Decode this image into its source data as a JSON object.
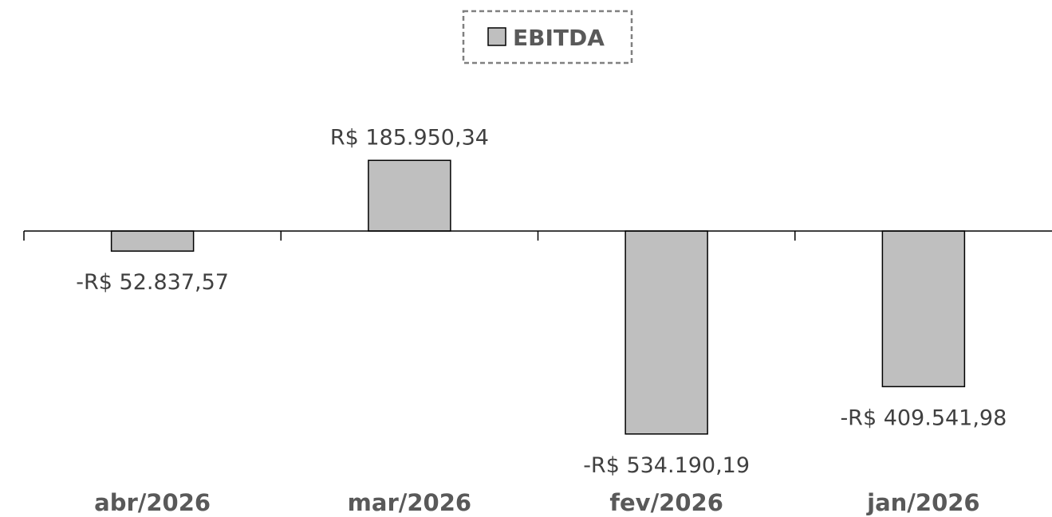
{
  "chart_data": {
    "type": "bar",
    "categories": [
      "abr/2026",
      "mar/2026",
      "fev/2026",
      "jan/2026"
    ],
    "series": [
      {
        "name": "EBITDA",
        "values": [
          -52837.57,
          185950.34,
          -534190.19,
          -409541.98
        ],
        "labels": [
          "-R$ 52.837,57",
          "R$ 185.950,34",
          "-R$ 534.190,19",
          "-R$ 409.541,98"
        ],
        "color": "#bfbfbf"
      }
    ],
    "title": "",
    "xlabel": "",
    "ylabel": "",
    "ylim": [
      -600000,
      200000
    ],
    "grid": false,
    "legend_position": "top-center",
    "colors": {
      "bar_fill": "#bfbfbf",
      "bar_stroke": "#000000",
      "axis": "#000000",
      "legend_border": "#808080",
      "text": "#595959"
    }
  }
}
